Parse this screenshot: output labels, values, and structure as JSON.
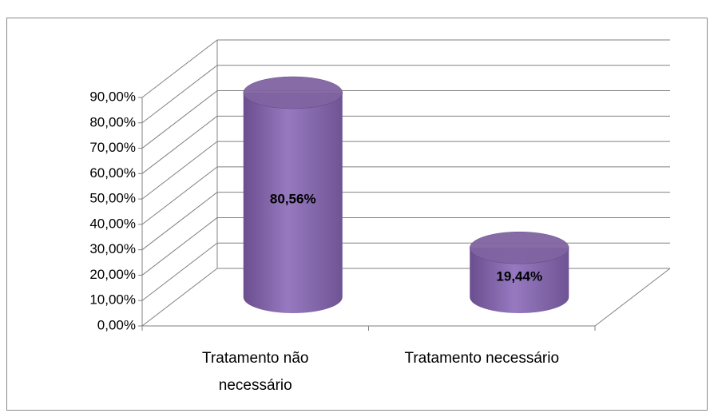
{
  "chart_data": {
    "type": "bar3d",
    "categories": [
      "Tratamento não necessário",
      "Tratamento necessário"
    ],
    "values": [
      80.56,
      19.44
    ],
    "value_labels": [
      "80,56%",
      "19,44%"
    ],
    "color": "#8064a2",
    "ylim": [
      0,
      90
    ],
    "yticks": [
      {
        "value": 0,
        "label": "0,00%"
      },
      {
        "value": 10,
        "label": "10,00%"
      },
      {
        "value": 20,
        "label": "20,00%"
      },
      {
        "value": 30,
        "label": "30,00%"
      },
      {
        "value": 40,
        "label": "40,00%"
      },
      {
        "value": 50,
        "label": "50,00%"
      },
      {
        "value": 60,
        "label": "60,00%"
      },
      {
        "value": 70,
        "label": "70,00%"
      },
      {
        "value": 80,
        "label": "80,00%"
      },
      {
        "value": 90,
        "label": "90,00%"
      }
    ],
    "grid": true
  }
}
